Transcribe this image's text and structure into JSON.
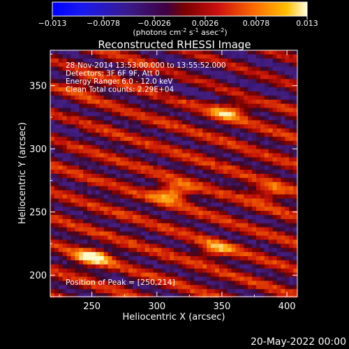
{
  "chart_data": {
    "type": "heatmap",
    "title": "Reconstructed RHESSI Image",
    "xlabel": "Heliocentric X (arcsec)",
    "ylabel": "Heliocentric Y (arcsec)",
    "xlim": [
      218,
      408
    ],
    "ylim": [
      183,
      378
    ],
    "xticks": [
      250,
      300,
      350,
      400
    ],
    "yticks": [
      200,
      250,
      300,
      350
    ],
    "colorbar": {
      "min": -0.013,
      "max": 0.013,
      "ticks": [
        "-0.013",
        "-0.0078",
        "-0.0026",
        "0.0026",
        "0.0078",
        "0.013"
      ],
      "unit_label": "(photons cm-2 s-1 asec-2)"
    },
    "annotations": [
      "28-Nov-2014 13:53:00.000 to 13:55:52.000",
      "Detectors: 3F 6F 9F, Att 0",
      "Energy Range: 6.0 - 12.0 keV",
      "Clean     Total counts: 2.29E+04"
    ],
    "peak_label": "Position of Peak = [250,214]",
    "peak": [
      250,
      214
    ],
    "sources": [
      {
        "x": 250,
        "y": 214,
        "amp": 1.0
      },
      {
        "x": 312,
        "y": 265,
        "amp": 0.95
      },
      {
        "x": 355,
        "y": 330,
        "amp": 0.72
      },
      {
        "x": 385,
        "y": 265,
        "amp": 0.6
      },
      {
        "x": 345,
        "y": 220,
        "amp": 0.62
      },
      {
        "x": 240,
        "y": 350,
        "amp": 0.45
      }
    ]
  },
  "footer": {
    "date": "20-May-2022 00:00"
  }
}
